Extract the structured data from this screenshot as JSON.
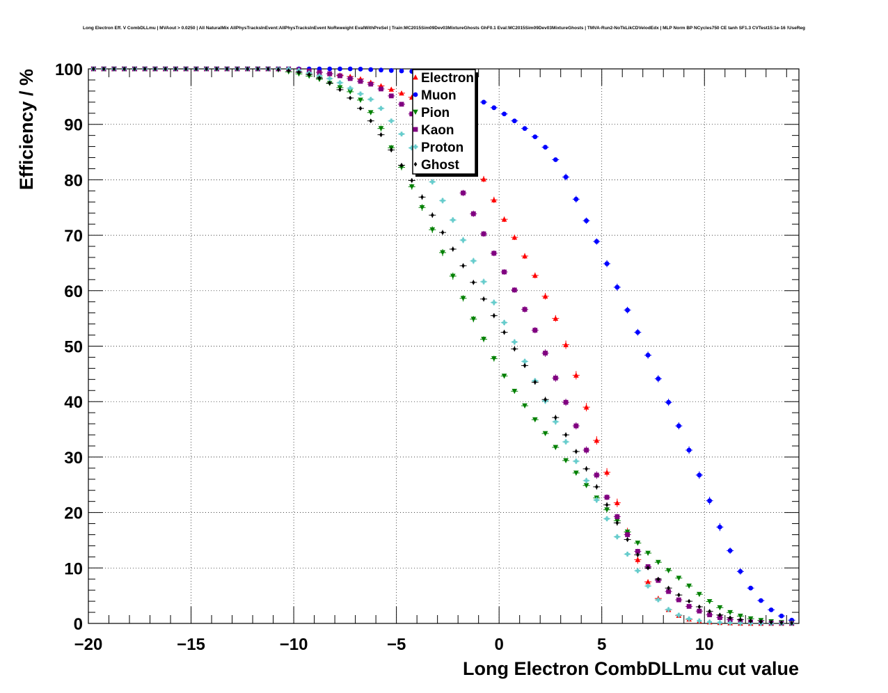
{
  "chart_data": {
    "type": "scatter",
    "title": "Long Electron Eff. V CombDLLmu | MVAout > 0.0250 | All NaturalMix AllPhysTracksInEvent:AllPhysTracksInEvent NoReweight EvalWithPreSel | Train:MC2015Sim09Dev03MixtureGhosts GhF0.1 Eval:MC2015Sim09Dev03MixtureGhosts | TMVA-Run2-NoTkLikCDVelodEdx | MLP Norm BP NCycles750 CE tanh SF1.3 CVTest15:1e-16 !UseReg",
    "xlabel": "Long Electron CombDLLmu cut value",
    "ylabel": "Efficiency / %",
    "xlim": [
      -20,
      14.6
    ],
    "ylim": [
      0,
      100
    ],
    "xticks": [
      -20,
      -15,
      -10,
      -5,
      0,
      5,
      10
    ],
    "xtick_labels": [
      "−20",
      "−15",
      "−10",
      "−5",
      "0",
      "5",
      "10"
    ],
    "yticks": [
      0,
      10,
      20,
      30,
      40,
      50,
      60,
      70,
      80,
      90,
      100
    ],
    "grid": true,
    "legend_position": "top-center",
    "x_step": 0.5,
    "series": [
      {
        "name": "Electron",
        "color": "#ff0000",
        "marker": "triangle-up",
        "anchors": [
          [
            -20,
            100
          ],
          [
            -10,
            100
          ],
          [
            -7,
            98.5
          ],
          [
            -5,
            96
          ],
          [
            -4,
            94.5
          ],
          [
            -3,
            92.5
          ],
          [
            -2,
            88
          ],
          [
            -1,
            82
          ],
          [
            0,
            74.5
          ],
          [
            1,
            68
          ],
          [
            2,
            61
          ],
          [
            3,
            53
          ],
          [
            4,
            42
          ],
          [
            5,
            30
          ],
          [
            6,
            19
          ],
          [
            7,
            9
          ],
          [
            8,
            3
          ],
          [
            9,
            0.9
          ],
          [
            10,
            0.3
          ],
          [
            11,
            0.1
          ],
          [
            12,
            0
          ],
          [
            14.6,
            0
          ]
        ]
      },
      {
        "name": "Muon",
        "color": "#0000ff",
        "marker": "circle",
        "anchors": [
          [
            -20,
            100
          ],
          [
            -7,
            100
          ],
          [
            -4,
            99.5
          ],
          [
            -3,
            98.5
          ],
          [
            -2,
            97
          ],
          [
            -1,
            94.5
          ],
          [
            0,
            92.5
          ],
          [
            1,
            90
          ],
          [
            2,
            87
          ],
          [
            3,
            82.5
          ],
          [
            4,
            74.5
          ],
          [
            5,
            67
          ],
          [
            6,
            58.5
          ],
          [
            7,
            50.5
          ],
          [
            8,
            42
          ],
          [
            9,
            33.5
          ],
          [
            10,
            24.5
          ],
          [
            11,
            15
          ],
          [
            12,
            7.5
          ],
          [
            13,
            3
          ],
          [
            14,
            0.8
          ],
          [
            14.6,
            0.3
          ]
        ]
      },
      {
        "name": "Pion",
        "color": "#008000",
        "marker": "triangle-down",
        "anchors": [
          [
            -20,
            100
          ],
          [
            -11,
            100
          ],
          [
            -10,
            99.3
          ],
          [
            -9,
            98.5
          ],
          [
            -7,
            95.5
          ],
          [
            -6,
            91
          ],
          [
            -5,
            84
          ],
          [
            -4,
            77
          ],
          [
            -3,
            69
          ],
          [
            -2,
            60.5
          ],
          [
            -1,
            53
          ],
          [
            0,
            46
          ],
          [
            1,
            40.5
          ],
          [
            2,
            35.5
          ],
          [
            3,
            30.5
          ],
          [
            4,
            26
          ],
          [
            5,
            21.5
          ],
          [
            6,
            17.5
          ],
          [
            7,
            13.5
          ],
          [
            8,
            10.2
          ],
          [
            9,
            7.5
          ],
          [
            10,
            4.5
          ],
          [
            11,
            2.3
          ],
          [
            12,
            1
          ],
          [
            13,
            0.4
          ],
          [
            14,
            0.1
          ],
          [
            14.6,
            0
          ]
        ]
      },
      {
        "name": "Kaon",
        "color": "#800080",
        "marker": "square",
        "anchors": [
          [
            -20,
            100
          ],
          [
            -10,
            100
          ],
          [
            -8,
            99
          ],
          [
            -6,
            97
          ],
          [
            -5,
            94.5
          ],
          [
            -4,
            91
          ],
          [
            -3,
            86
          ],
          [
            -2,
            79.5
          ],
          [
            -1,
            72
          ],
          [
            0,
            65
          ],
          [
            1,
            58.5
          ],
          [
            2,
            51
          ],
          [
            3,
            42
          ],
          [
            4,
            33.5
          ],
          [
            5,
            24.5
          ],
          [
            6,
            17.5
          ],
          [
            7,
            11.5
          ],
          [
            8,
            6.5
          ],
          [
            9,
            3.5
          ],
          [
            10,
            1.8
          ],
          [
            11,
            0.8
          ],
          [
            12,
            0.3
          ],
          [
            13,
            0.1
          ],
          [
            14.6,
            0
          ]
        ]
      },
      {
        "name": "Proton",
        "color": "#66cccc",
        "marker": "cross",
        "anchors": [
          [
            -20,
            100
          ],
          [
            -10,
            100
          ],
          [
            -8,
            98
          ],
          [
            -6,
            94
          ],
          [
            -5,
            89.5
          ],
          [
            -4,
            84.5
          ],
          [
            -3,
            78
          ],
          [
            -2,
            71
          ],
          [
            -1,
            63.5
          ],
          [
            0,
            56
          ],
          [
            1,
            49
          ],
          [
            2,
            42
          ],
          [
            3,
            34.5
          ],
          [
            4,
            27.5
          ],
          [
            5,
            20.5
          ],
          [
            6,
            14
          ],
          [
            7,
            8
          ],
          [
            8,
            3
          ],
          [
            9,
            1
          ],
          [
            10,
            0.3
          ],
          [
            11,
            0.1
          ],
          [
            12,
            0
          ],
          [
            14.6,
            0
          ]
        ]
      },
      {
        "name": "Ghost",
        "color": "#000000",
        "marker": "diamond",
        "anchors": [
          [
            -20,
            100
          ],
          [
            -11,
            100
          ],
          [
            -10,
            99.6
          ],
          [
            -9,
            98.8
          ],
          [
            -8,
            97
          ],
          [
            -7,
            94
          ],
          [
            -6,
            89.5
          ],
          [
            -5,
            84
          ],
          [
            -4,
            78.5
          ],
          [
            -3,
            72
          ],
          [
            -2,
            66
          ],
          [
            -1,
            60
          ],
          [
            0,
            54
          ],
          [
            1,
            48
          ],
          [
            2,
            42
          ],
          [
            3,
            35.5
          ],
          [
            4,
            29.5
          ],
          [
            5,
            23
          ],
          [
            6,
            16.5
          ],
          [
            7,
            11
          ],
          [
            8,
            7
          ],
          [
            9,
            4.5
          ],
          [
            10,
            2.5
          ],
          [
            11,
            1.2
          ],
          [
            12,
            0.5
          ],
          [
            13,
            0.2
          ],
          [
            14.6,
            0
          ]
        ]
      }
    ]
  }
}
